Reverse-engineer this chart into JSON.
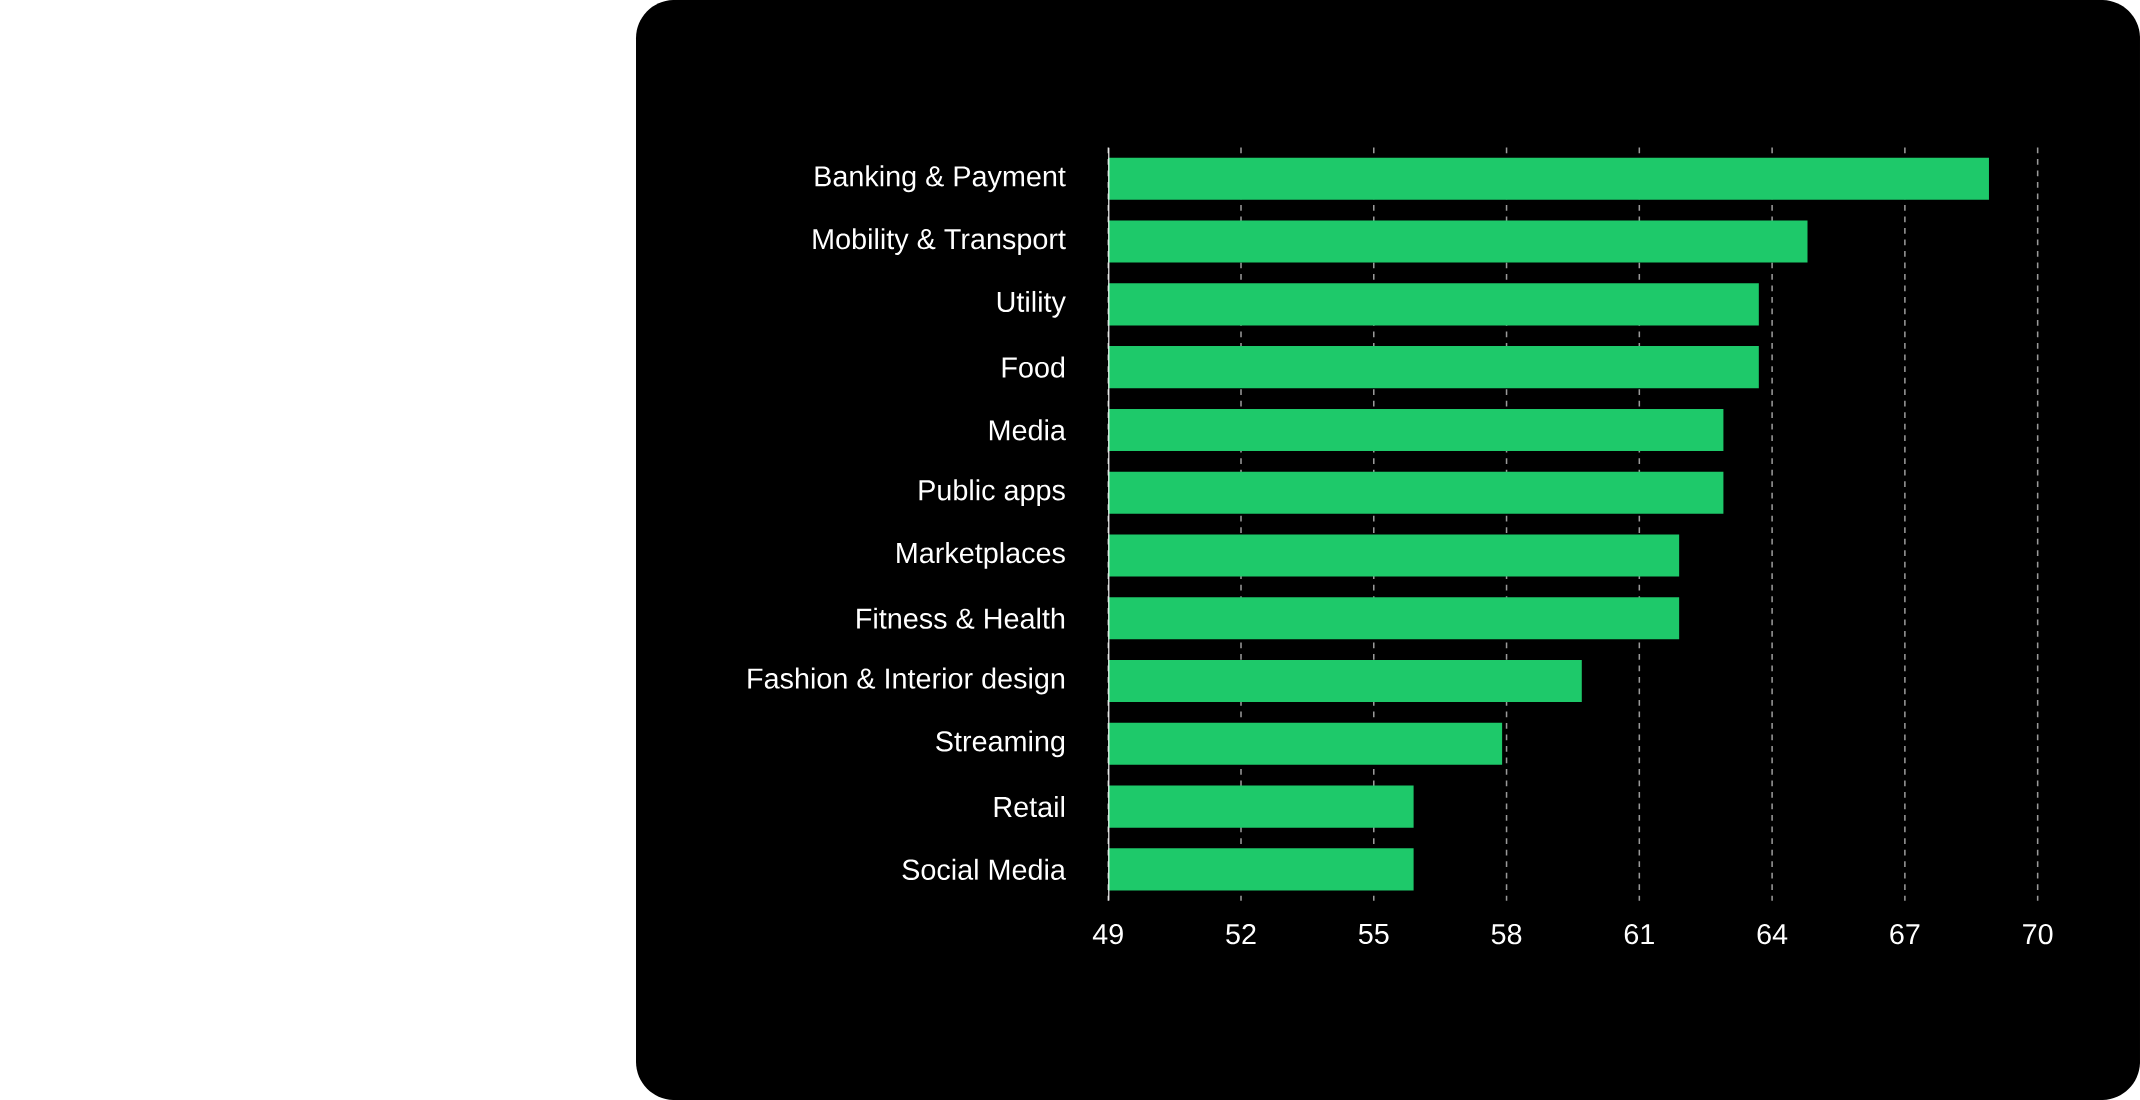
{
  "chart_data": {
    "type": "bar",
    "orientation": "horizontal",
    "categories": [
      "Banking & Payment",
      "Mobility & Transport",
      "Utility",
      "Food",
      "Media",
      "Public apps",
      "Marketplaces",
      "Fitness & Health",
      "Fashion & Interior design",
      "Streaming",
      "Retail",
      "Social Media"
    ],
    "values": [
      68.9,
      64.8,
      63.7,
      63.7,
      62.9,
      62.9,
      61.9,
      61.9,
      59.7,
      57.9,
      55.9,
      55.9
    ],
    "color": "#1ec96a",
    "xlim": [
      49,
      70
    ],
    "xticks": [
      49,
      52,
      55,
      58,
      61,
      64,
      67,
      70
    ],
    "grid": "x"
  }
}
